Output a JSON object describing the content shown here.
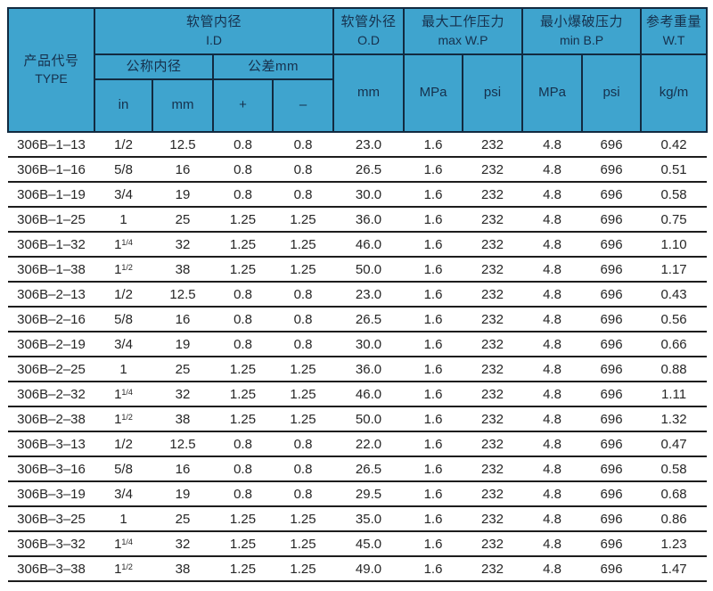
{
  "colors": {
    "header_bg": "#3FA4CE",
    "header_text": "#16304C",
    "header_border": "#122A40",
    "row_line": "#1d1d1d",
    "data_text": "#262626"
  },
  "table": {
    "header": {
      "type": {
        "zh": "产品代号",
        "en": "TYPE"
      },
      "id_group": {
        "zh": "软管内径",
        "en": "I.D"
      },
      "nominal_label": "公称内径",
      "tolerance_label": "公差mm",
      "sub": {
        "in": "in",
        "mm": "mm",
        "plus": "+",
        "minus": "–"
      },
      "od_group": {
        "zh": "软管外径",
        "en": "O.D",
        "unit": "mm"
      },
      "wp_group": {
        "zh": "最大工作压力",
        "en": "max W.P",
        "units": [
          "MPa",
          "psi"
        ]
      },
      "bp_group": {
        "zh": "最小爆破压力",
        "en": "min B.P",
        "units": [
          "MPa",
          "psi"
        ]
      },
      "wt_group": {
        "zh": "参考重量",
        "en": "W.T",
        "unit": "kg/m"
      }
    },
    "rows": [
      [
        "306B–1–13",
        "1/2",
        "12.5",
        "0.8",
        "0.8",
        "23.0",
        "1.6",
        "232",
        "4.8",
        "696",
        "0.42"
      ],
      [
        "306B–1–16",
        "5/8",
        "16",
        "0.8",
        "0.8",
        "26.5",
        "1.6",
        "232",
        "4.8",
        "696",
        "0.51"
      ],
      [
        "306B–1–19",
        "3/4",
        "19",
        "0.8",
        "0.8",
        "30.0",
        "1.6",
        "232",
        "4.8",
        "696",
        "0.58"
      ],
      [
        "306B–1–25",
        "1",
        "25",
        "1.25",
        "1.25",
        "36.0",
        "1.6",
        "232",
        "4.8",
        "696",
        "0.75"
      ],
      [
        "306B–1–32",
        "1 1/4",
        "32",
        "1.25",
        "1.25",
        "46.0",
        "1.6",
        "232",
        "4.8",
        "696",
        "1.10"
      ],
      [
        "306B–1–38",
        "1 1/2",
        "38",
        "1.25",
        "1.25",
        "50.0",
        "1.6",
        "232",
        "4.8",
        "696",
        "1.17"
      ],
      [
        "306B–2–13",
        "1/2",
        "12.5",
        "0.8",
        "0.8",
        "23.0",
        "1.6",
        "232",
        "4.8",
        "696",
        "0.43"
      ],
      [
        "306B–2–16",
        "5/8",
        "16",
        "0.8",
        "0.8",
        "26.5",
        "1.6",
        "232",
        "4.8",
        "696",
        "0.56"
      ],
      [
        "306B–2–19",
        "3/4",
        "19",
        "0.8",
        "0.8",
        "30.0",
        "1.6",
        "232",
        "4.8",
        "696",
        "0.66"
      ],
      [
        "306B–2–25",
        "1",
        "25",
        "1.25",
        "1.25",
        "36.0",
        "1.6",
        "232",
        "4.8",
        "696",
        "0.88"
      ],
      [
        "306B–2–32",
        "1 1/4",
        "32",
        "1.25",
        "1.25",
        "46.0",
        "1.6",
        "232",
        "4.8",
        "696",
        "1.11"
      ],
      [
        "306B–2–38",
        "1 1/2",
        "38",
        "1.25",
        "1.25",
        "50.0",
        "1.6",
        "232",
        "4.8",
        "696",
        "1.32"
      ],
      [
        "306B–3–13",
        "1/2",
        "12.5",
        "0.8",
        "0.8",
        "22.0",
        "1.6",
        "232",
        "4.8",
        "696",
        "0.47"
      ],
      [
        "306B–3–16",
        "5/8",
        "16",
        "0.8",
        "0.8",
        "26.5",
        "1.6",
        "232",
        "4.8",
        "696",
        "0.58"
      ],
      [
        "306B–3–19",
        "3/4",
        "19",
        "0.8",
        "0.8",
        "29.5",
        "1.6",
        "232",
        "4.8",
        "696",
        "0.68"
      ],
      [
        "306B–3–25",
        "1",
        "25",
        "1.25",
        "1.25",
        "35.0",
        "1.6",
        "232",
        "4.8",
        "696",
        "0.86"
      ],
      [
        "306B–3–32",
        "1 1/4",
        "32",
        "1.25",
        "1.25",
        "45.0",
        "1.6",
        "232",
        "4.8",
        "696",
        "1.23"
      ],
      [
        "306B–3–38",
        "1 1/2",
        "38",
        "1.25",
        "1.25",
        "49.0",
        "1.6",
        "232",
        "4.8",
        "696",
        "1.47"
      ]
    ]
  }
}
